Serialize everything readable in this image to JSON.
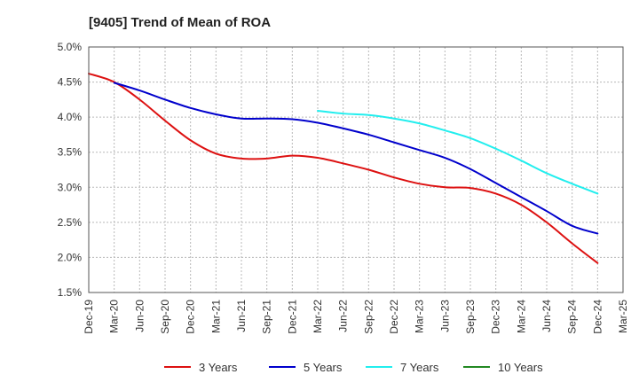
{
  "chart_data": {
    "type": "line",
    "title": "[9405]  Trend of Mean of ROA",
    "xlabel": "",
    "ylabel": "",
    "ylim": [
      1.5,
      5.0
    ],
    "y_ticks": [
      "1.5%",
      "2.0%",
      "2.5%",
      "3.0%",
      "3.5%",
      "4.0%",
      "4.5%",
      "5.0%"
    ],
    "y_tick_values": [
      1.5,
      2.0,
      2.5,
      3.0,
      3.5,
      4.0,
      4.5,
      5.0
    ],
    "categories": [
      "Dec-19",
      "Mar-20",
      "Jun-20",
      "Sep-20",
      "Dec-20",
      "Mar-21",
      "Jun-21",
      "Sep-21",
      "Dec-21",
      "Mar-22",
      "Jun-22",
      "Sep-22",
      "Dec-22",
      "Mar-23",
      "Jun-23",
      "Sep-23",
      "Dec-23",
      "Mar-24",
      "Jun-24",
      "Sep-24",
      "Dec-24",
      "Mar-25"
    ],
    "grid": true,
    "legend_position": "bottom",
    "series": [
      {
        "name": "3 Years",
        "color": "#dd1111",
        "values": [
          4.62,
          4.5,
          4.25,
          3.95,
          3.67,
          3.48,
          3.41,
          3.41,
          3.45,
          3.42,
          3.34,
          3.25,
          3.14,
          3.05,
          3.0,
          2.99,
          2.91,
          2.75,
          2.5,
          2.2,
          1.92,
          null
        ]
      },
      {
        "name": "5 Years",
        "color": "#0000cc",
        "values": [
          null,
          4.49,
          4.38,
          4.25,
          4.13,
          4.04,
          3.98,
          3.98,
          3.97,
          3.92,
          3.84,
          3.75,
          3.64,
          3.53,
          3.42,
          3.26,
          3.06,
          2.86,
          2.66,
          2.45,
          2.34,
          null
        ]
      },
      {
        "name": "7 Years",
        "color": "#22eeee",
        "values": [
          null,
          null,
          null,
          null,
          null,
          null,
          null,
          null,
          null,
          4.09,
          4.05,
          4.03,
          3.98,
          3.91,
          3.81,
          3.7,
          3.55,
          3.38,
          3.2,
          3.05,
          2.91,
          null
        ]
      },
      {
        "name": "10 Years",
        "color": "#228822",
        "values": [
          null,
          null,
          null,
          null,
          null,
          null,
          null,
          null,
          null,
          null,
          null,
          null,
          null,
          null,
          null,
          null,
          null,
          null,
          null,
          null,
          null,
          null
        ]
      }
    ]
  }
}
